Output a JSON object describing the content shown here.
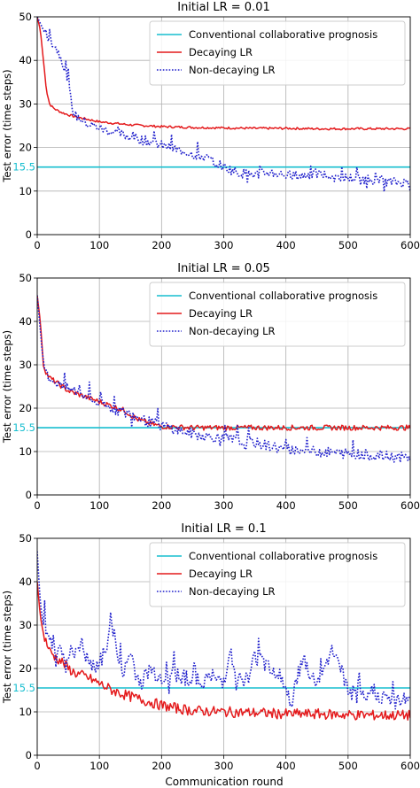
{
  "figure": {
    "xlabel": "Communication round",
    "ylabel": "Test error (time steps)"
  },
  "chart_data": [
    {
      "type": "line",
      "title": "Initial LR = 0.01",
      "xlabel": "",
      "ylabel": "Test error (time steps)",
      "xlim": [
        0,
        600
      ],
      "ylim": [
        0,
        50
      ],
      "xticks": [
        "0",
        "100",
        "200",
        "300",
        "400",
        "500",
        "600"
      ],
      "yticks": [
        "0",
        "10",
        "20",
        "30",
        "40",
        "50"
      ],
      "grid": true,
      "legend_position": "top-right",
      "reference_label": "15.5",
      "series": [
        {
          "name": "Conventional collaborative prognosis",
          "color": "#17becf",
          "style": "solid",
          "x": [
            0,
            600
          ],
          "y": [
            15.5,
            15.5
          ]
        },
        {
          "name": "Decaying LR",
          "color": "#e41a1c",
          "style": "solid",
          "x": [
            0,
            5,
            10,
            15,
            20,
            25,
            30,
            40,
            50,
            60,
            80,
            100,
            150,
            200,
            250,
            300,
            350,
            400,
            450,
            500,
            550,
            600
          ],
          "y": [
            50,
            47,
            40,
            33,
            30,
            29.2,
            28.7,
            28.0,
            27.5,
            27.1,
            26.5,
            25.9,
            25.2,
            24.8,
            24.6,
            24.5,
            24.4,
            24.4,
            24.3,
            24.3,
            24.3,
            24.3
          ]
        },
        {
          "name": "Non-decaying LR",
          "color": "#1f1fcc",
          "style": "dotted",
          "x": [
            0,
            10,
            20,
            30,
            40,
            50,
            55,
            60,
            70,
            80,
            100,
            120,
            150,
            175,
            200,
            225,
            250,
            275,
            300,
            325,
            350,
            375,
            400,
            425,
            450,
            475,
            500,
            525,
            550,
            575,
            600
          ],
          "y": [
            50,
            47,
            45,
            43,
            40,
            35,
            30,
            27.5,
            26.5,
            25.5,
            24.5,
            23.5,
            22.5,
            21.5,
            20.5,
            19.5,
            18.5,
            17.5,
            15.5,
            14.2,
            13.8,
            14.3,
            13.7,
            13.5,
            14.0,
            13.4,
            13.0,
            12.8,
            12.5,
            12.0,
            12.0
          ]
        }
      ]
    },
    {
      "type": "line",
      "title": "Initial LR = 0.05",
      "xlabel": "",
      "ylabel": "Test error (time steps)",
      "xlim": [
        0,
        600
      ],
      "ylim": [
        0,
        50
      ],
      "xticks": [
        "0",
        "100",
        "200",
        "300",
        "400",
        "500",
        "600"
      ],
      "yticks": [
        "0",
        "10",
        "20",
        "30",
        "40",
        "50"
      ],
      "grid": true,
      "legend_position": "top-right",
      "reference_label": "15.5",
      "series": [
        {
          "name": "Conventional collaborative prognosis",
          "color": "#17becf",
          "style": "solid",
          "x": [
            0,
            600
          ],
          "y": [
            15.5,
            15.5
          ]
        },
        {
          "name": "Decaying LR",
          "color": "#e41a1c",
          "style": "solid",
          "x": [
            0,
            5,
            10,
            15,
            20,
            30,
            40,
            50,
            60,
            80,
            100,
            120,
            140,
            160,
            180,
            200,
            250,
            300,
            350,
            400,
            450,
            500,
            550,
            600
          ],
          "y": [
            46,
            40,
            30,
            28,
            27,
            26,
            25,
            24,
            23.5,
            22.5,
            21.5,
            20.5,
            19.5,
            17.5,
            16.5,
            15.8,
            15.5,
            15.5,
            15.5,
            15.5,
            15.5,
            15.5,
            15.5,
            15.5
          ]
        },
        {
          "name": "Non-decaying LR",
          "color": "#1f1fcc",
          "style": "dotted",
          "x": [
            0,
            5,
            10,
            15,
            20,
            30,
            40,
            50,
            60,
            80,
            100,
            120,
            150,
            175,
            200,
            225,
            250,
            275,
            300,
            350,
            400,
            450,
            500,
            550,
            600
          ],
          "y": [
            46,
            38,
            30,
            28,
            27,
            26,
            25,
            24.5,
            24,
            22.5,
            21,
            20,
            18.5,
            17,
            16,
            15,
            14,
            13.5,
            13,
            12,
            10.5,
            10,
            9.5,
            9,
            8.5
          ]
        }
      ]
    },
    {
      "type": "line",
      "title": "Initial LR = 0.1",
      "xlabel": "Communication round",
      "ylabel": "Test error (time steps)",
      "xlim": [
        0,
        600
      ],
      "ylim": [
        0,
        50
      ],
      "xticks": [
        "0",
        "100",
        "200",
        "300",
        "400",
        "500",
        "600"
      ],
      "yticks": [
        "0",
        "10",
        "20",
        "30",
        "40",
        "50"
      ],
      "grid": true,
      "legend_position": "top-right",
      "reference_label": "15.5",
      "series": [
        {
          "name": "Conventional collaborative prognosis",
          "color": "#17becf",
          "style": "solid",
          "x": [
            0,
            600
          ],
          "y": [
            15.5,
            15.5
          ]
        },
        {
          "name": "Decaying LR",
          "color": "#e41a1c",
          "style": "solid",
          "x": [
            0,
            5,
            10,
            20,
            30,
            40,
            50,
            60,
            80,
            100,
            120,
            150,
            175,
            200,
            225,
            250,
            300,
            350,
            400,
            450,
            500,
            550,
            600
          ],
          "y": [
            40,
            32,
            28,
            24,
            22.5,
            21.5,
            20,
            19,
            18,
            16.5,
            15,
            13.5,
            12.5,
            11.5,
            10.8,
            10.3,
            10,
            9.8,
            9.5,
            9.5,
            9.3,
            9.2,
            9.2
          ]
        },
        {
          "name": "Non-decaying LR",
          "color": "#1f1fcc",
          "style": "dotted",
          "x": [
            0,
            5,
            10,
            20,
            30,
            40,
            50,
            60,
            70,
            80,
            90,
            100,
            110,
            120,
            130,
            140,
            150,
            160,
            170,
            180,
            190,
            200,
            220,
            240,
            260,
            280,
            300,
            310,
            320,
            330,
            340,
            350,
            360,
            370,
            380,
            390,
            400,
            410,
            420,
            430,
            440,
            450,
            460,
            470,
            480,
            490,
            500,
            510,
            520,
            530,
            540,
            550,
            560,
            570,
            580,
            590,
            600
          ],
          "y": [
            47,
            35,
            30,
            27,
            25,
            24,
            23,
            24,
            26,
            22,
            20,
            21,
            25,
            31,
            22,
            19,
            24,
            18,
            17,
            20,
            19,
            18,
            19,
            18,
            17,
            18,
            17,
            25,
            17,
            18,
            17,
            23,
            22,
            21,
            20,
            19,
            14,
            13,
            19,
            22,
            18,
            17,
            19,
            23,
            24,
            19,
            15,
            14,
            13,
            13,
            15,
            14,
            13,
            12.5,
            12,
            14,
            13
          ]
        }
      ]
    }
  ]
}
